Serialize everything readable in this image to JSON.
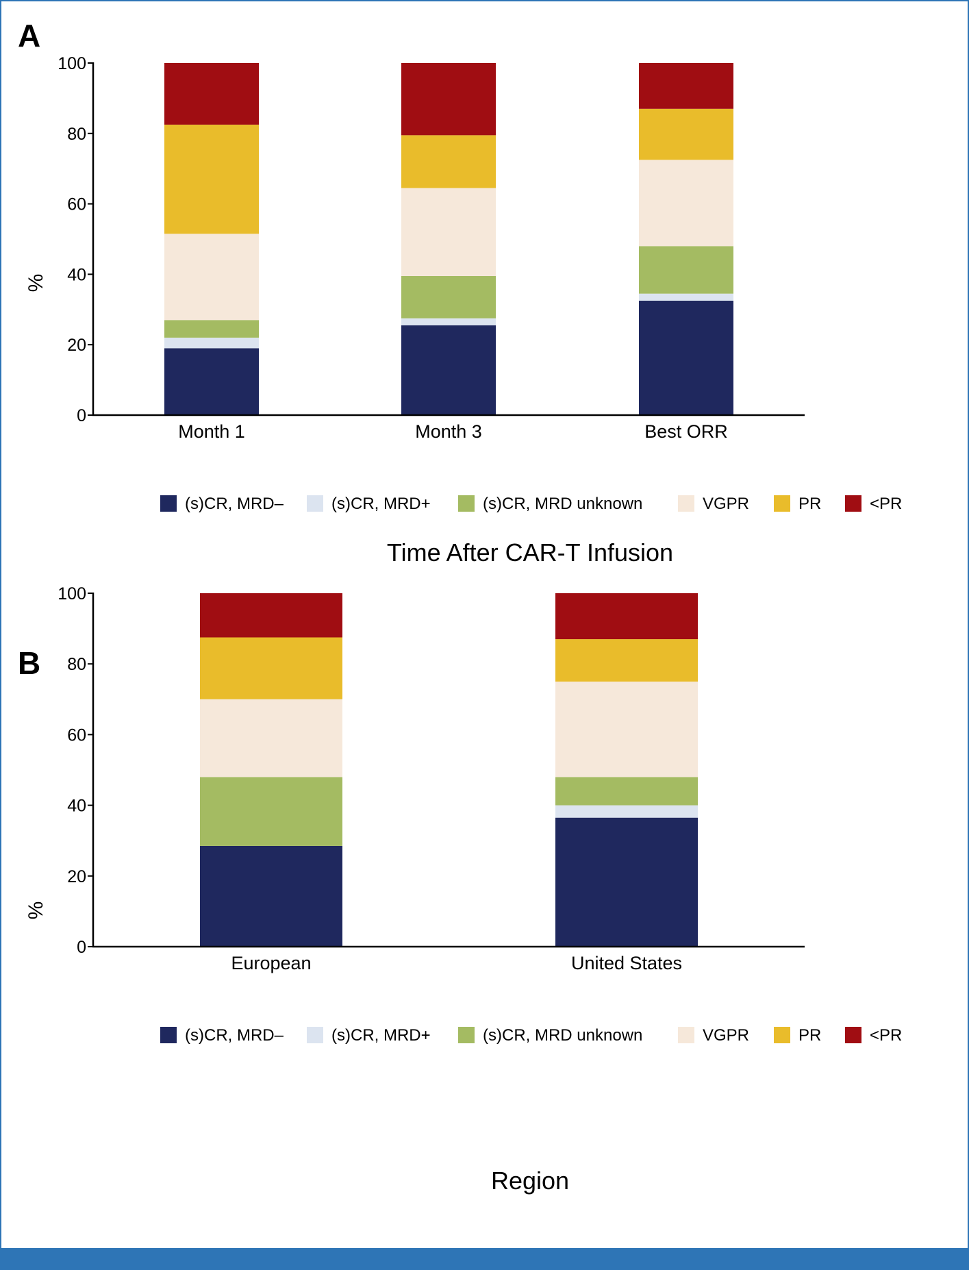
{
  "colors": {
    "scr_mrd_neg": "#1f285e",
    "scr_mrd_pos": "#dce4f0",
    "scr_mrd_unknown": "#a4bb62",
    "vgpr": "#f6e8da",
    "pr": "#e9bc2b",
    "lt_pr": "#a00d12",
    "frame": "#2e75b6"
  },
  "legend": [
    {
      "key": "scr_mrd_neg",
      "label": "(s)CR, MRD–"
    },
    {
      "key": "scr_mrd_pos",
      "label": "(s)CR, MRD+"
    },
    {
      "key": "scr_mrd_unknown",
      "label": "(s)CR, MRD unknown"
    },
    {
      "key": "vgpr",
      "label": "VGPR"
    },
    {
      "key": "pr",
      "label": "PR"
    },
    {
      "key": "lt_pr",
      "label": "<PR"
    }
  ],
  "chart_data": [
    {
      "panel": "A",
      "type": "bar",
      "stacked": true,
      "xlabel": "Time After CAR-T Infusion",
      "ylabel": "%",
      "ylim": [
        0,
        100
      ],
      "yticks": [
        0,
        20,
        40,
        60,
        80,
        100
      ],
      "categories": [
        "Month 1",
        "Month 3",
        "Best ORR"
      ],
      "series": [
        {
          "key": "scr_mrd_neg",
          "name": "(s)CR, MRD–",
          "values": [
            19,
            25.5,
            32.5
          ]
        },
        {
          "key": "scr_mrd_pos",
          "name": "(s)CR, MRD+",
          "values": [
            3,
            2,
            2
          ]
        },
        {
          "key": "scr_mrd_unknown",
          "name": "(s)CR, MRD unknown",
          "values": [
            5,
            12,
            13.5
          ]
        },
        {
          "key": "vgpr",
          "name": "VGPR",
          "values": [
            24.5,
            25,
            24.5
          ]
        },
        {
          "key": "pr",
          "name": "PR",
          "values": [
            31,
            15,
            14.5
          ]
        },
        {
          "key": "lt_pr",
          "name": "<PR",
          "values": [
            17.5,
            20.5,
            13
          ]
        }
      ]
    },
    {
      "panel": "B",
      "type": "bar",
      "stacked": true,
      "xlabel": "Region",
      "ylabel": "%",
      "ylim": [
        0,
        100
      ],
      "yticks": [
        0,
        20,
        40,
        60,
        80,
        100
      ],
      "categories": [
        "European",
        "United States"
      ],
      "series": [
        {
          "key": "scr_mrd_neg",
          "name": "(s)CR, MRD–",
          "values": [
            28.5,
            36.5
          ]
        },
        {
          "key": "scr_mrd_pos",
          "name": "(s)CR, MRD+",
          "values": [
            0,
            3.5
          ]
        },
        {
          "key": "scr_mrd_unknown",
          "name": "(s)CR, MRD unknown",
          "values": [
            19.5,
            8
          ]
        },
        {
          "key": "vgpr",
          "name": "VGPR",
          "values": [
            22,
            27
          ]
        },
        {
          "key": "pr",
          "name": "PR",
          "values": [
            17.5,
            12
          ]
        },
        {
          "key": "lt_pr",
          "name": "<PR",
          "values": [
            12.5,
            13
          ]
        }
      ]
    }
  ]
}
